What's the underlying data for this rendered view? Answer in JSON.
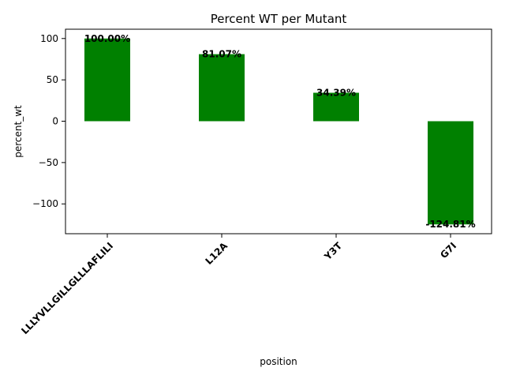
{
  "chart_data": {
    "type": "bar",
    "title": "Percent WT per Mutant",
    "xlabel": "position",
    "ylabel": "percent_wt",
    "categories": [
      "LLLYVLLGILLGLLLAFLILI",
      "L12A",
      "Y3T",
      "G7I"
    ],
    "values": [
      100.0,
      81.07,
      34.39,
      -124.81
    ],
    "data_labels": [
      "100.00%",
      "81.07%",
      "34.39%",
      "-124.81%"
    ],
    "yticks": [
      -100,
      -50,
      0,
      50,
      100
    ],
    "ytick_labels": [
      "−100",
      "−50",
      "0",
      "50",
      "100"
    ],
    "ylim": [
      -136.05,
      111.24
    ],
    "bar_color": "#008000",
    "grid": false,
    "legend": "none"
  }
}
